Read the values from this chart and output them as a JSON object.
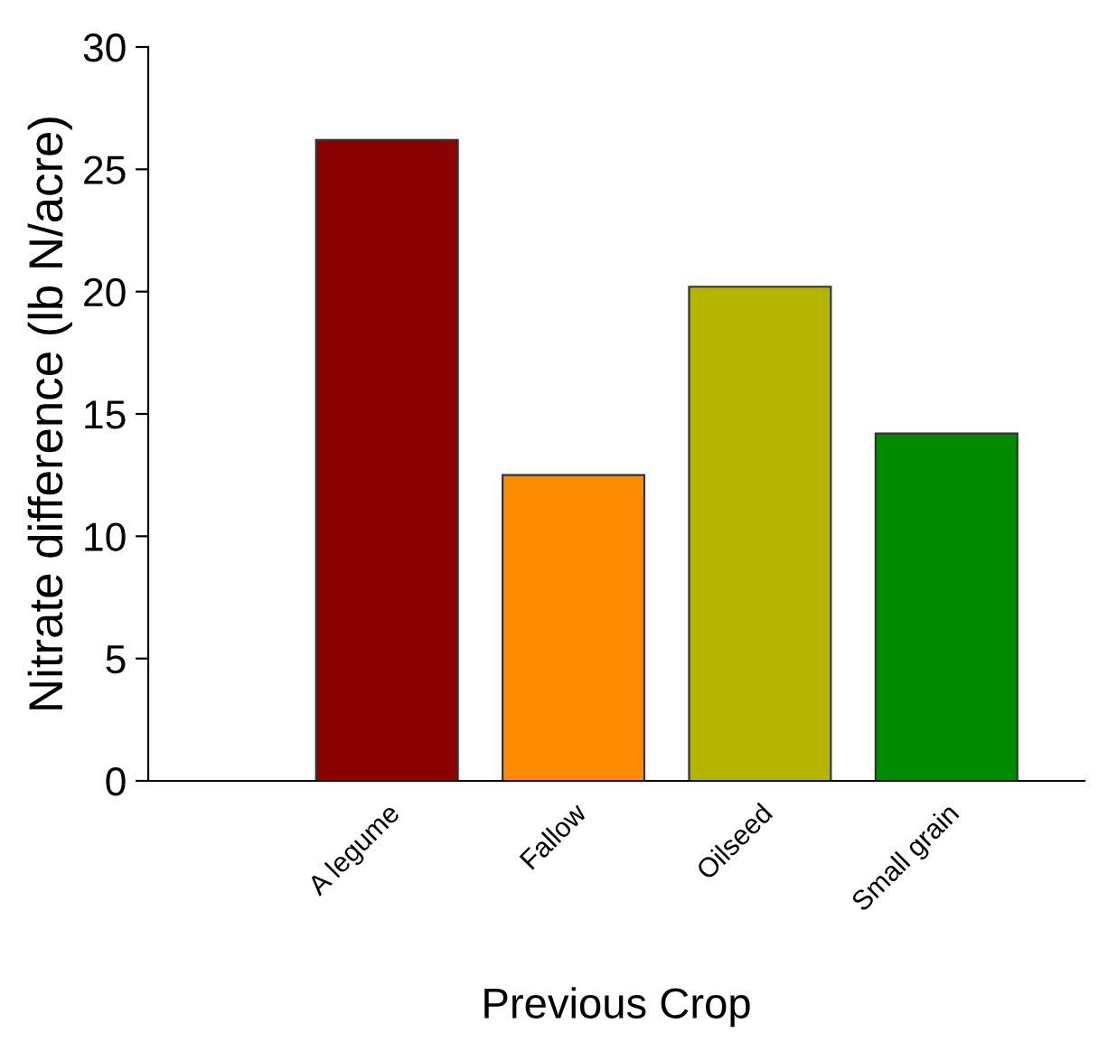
{
  "chart_data": {
    "type": "bar",
    "xlabel": "Previous Crop",
    "ylabel": "Nitrate difference (lb N/acre)",
    "categories": [
      "A legume",
      "Fallow",
      "Oilseed",
      "Small grain"
    ],
    "values": [
      26.2,
      12.5,
      20.2,
      14.2
    ],
    "colors": [
      "#8b0000",
      "#ff8c00",
      "#b5b500",
      "#008b00"
    ],
    "ylim": [
      0,
      30
    ],
    "yticks": [
      0,
      5,
      10,
      15,
      20,
      25,
      30
    ],
    "grid": false,
    "legend": false
  }
}
